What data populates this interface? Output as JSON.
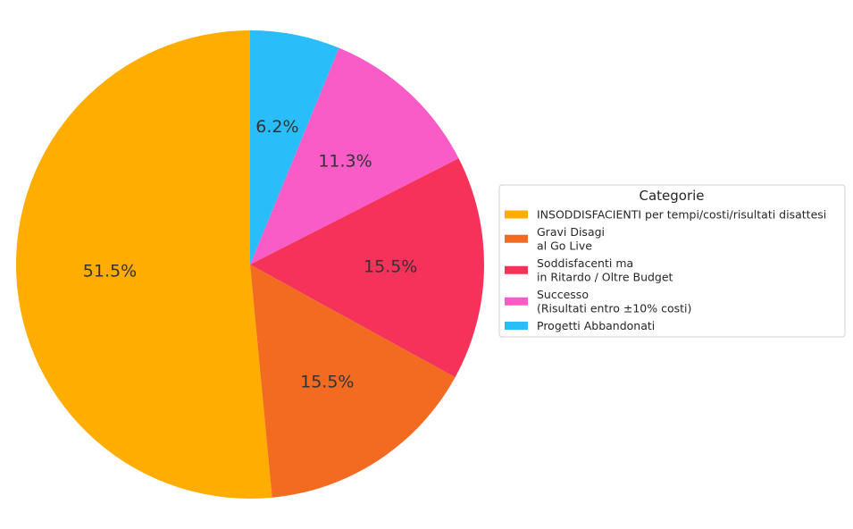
{
  "chart_data": {
    "type": "pie",
    "categories": [
      "INSODDISFACIENTI per tempi/costi/risultati disattesi",
      "Gravi Disagi\nal Go Live",
      "Soddisfacenti ma\nin Ritardo / Oltre Budget",
      "Successo\n(Risultati entro ±10% costi)",
      "Progetti Abbandonati"
    ],
    "values": [
      51.5,
      15.5,
      15.5,
      11.3,
      6.2
    ],
    "labels": [
      "51.5%",
      "15.5%",
      "15.5%",
      "11.3%",
      "6.2%"
    ],
    "colors": [
      "#ffad00",
      "#f26b21",
      "#f5325a",
      "#f95bc7",
      "#29bdfa"
    ],
    "legend": {
      "title": "Categorie",
      "placement": "right"
    },
    "start_angle": "top",
    "direction": "counterclockwise"
  }
}
